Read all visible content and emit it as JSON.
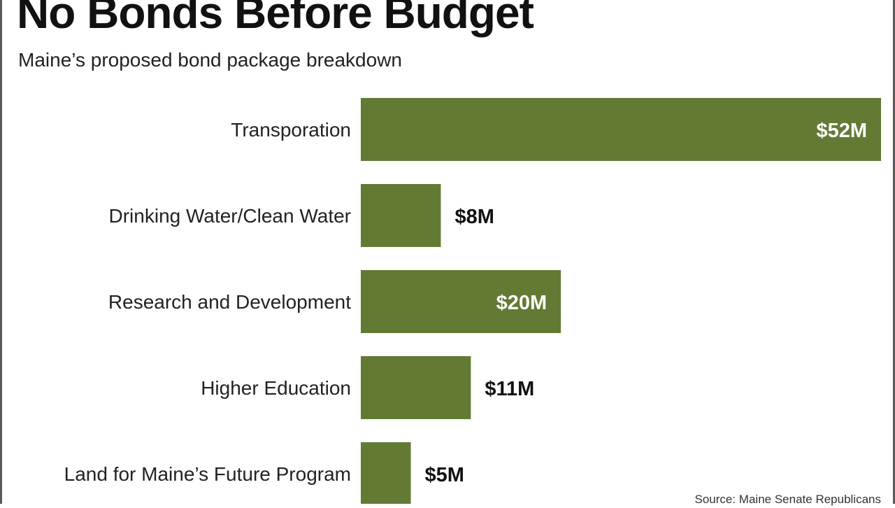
{
  "header": {
    "title": "No Bonds Before Budget",
    "subtitle": "Maine’s proposed bond package breakdown"
  },
  "footer": {
    "source": "Source: Maine Senate Republicans"
  },
  "colors": {
    "bar": "#627a34",
    "inside_label": "#ffffff",
    "outside_label": "#111111",
    "category_label": "#222222"
  },
  "chart_data": {
    "type": "bar",
    "orientation": "horizontal",
    "title": "No Bonds Before Budget",
    "subtitle": "Maine’s proposed bond package breakdown",
    "unit": "$M",
    "categories": [
      "Transporation",
      "Drinking Water/Clean Water",
      "Research and Development",
      "Higher Education",
      "Land for Maine’s Future Program"
    ],
    "values": [
      52,
      8,
      20,
      11,
      5
    ],
    "data_labels": [
      "$52M",
      "$8M",
      "$20M",
      "$11M",
      "$5M"
    ],
    "xlim": [
      0,
      52
    ],
    "grid": false,
    "legend": "none"
  }
}
